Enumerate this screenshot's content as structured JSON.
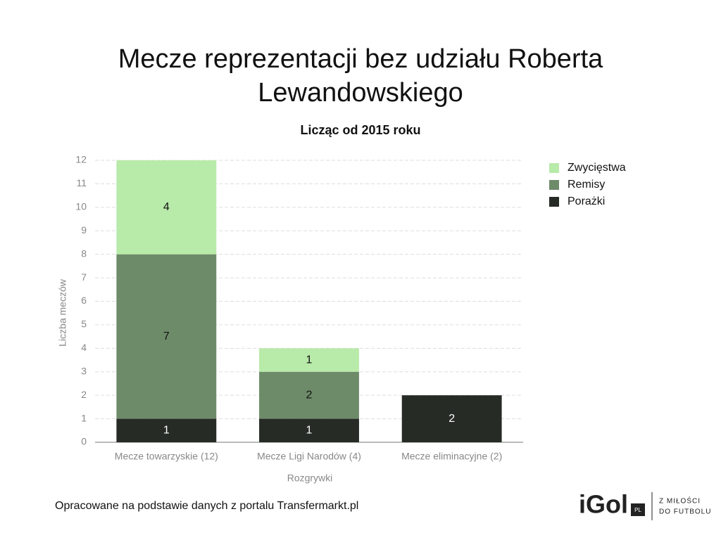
{
  "chart_data": {
    "type": "stacked_bar",
    "title": "Mecze reprezentacji bez udziału Roberta Lewandowskiego",
    "subtitle": "Licząc od 2015 roku",
    "x_label": "Rozgrywki",
    "y_label": "Liczba meczów",
    "categories": [
      "Mecze towarzyskie (12)",
      "Mecze Ligi Narodów (4)",
      "Mecze eliminacyjne (2)"
    ],
    "series": [
      {
        "name": "Zwycięstwa",
        "color": "#b8eaa9",
        "values": [
          4,
          1,
          0
        ]
      },
      {
        "name": "Remisy",
        "color": "#6e8b69",
        "values": [
          7,
          2,
          0
        ]
      },
      {
        "name": "Porażki",
        "color": "#262b26",
        "values": [
          1,
          1,
          2
        ]
      }
    ],
    "ylim": [
      0,
      12
    ],
    "yticks": [
      0,
      1,
      2,
      3,
      4,
      5,
      6,
      7,
      8,
      9,
      10,
      11,
      12
    ],
    "grid": true,
    "legend": "top-right"
  },
  "footer": {
    "source": "Opracowane na podstawie danych z portalu Transfermarkt.pl",
    "logo": "iGol",
    "logo_badge": "PL",
    "tagline_1": "Z MIŁOŚCI",
    "tagline_2": "DO FUTBOLU"
  }
}
